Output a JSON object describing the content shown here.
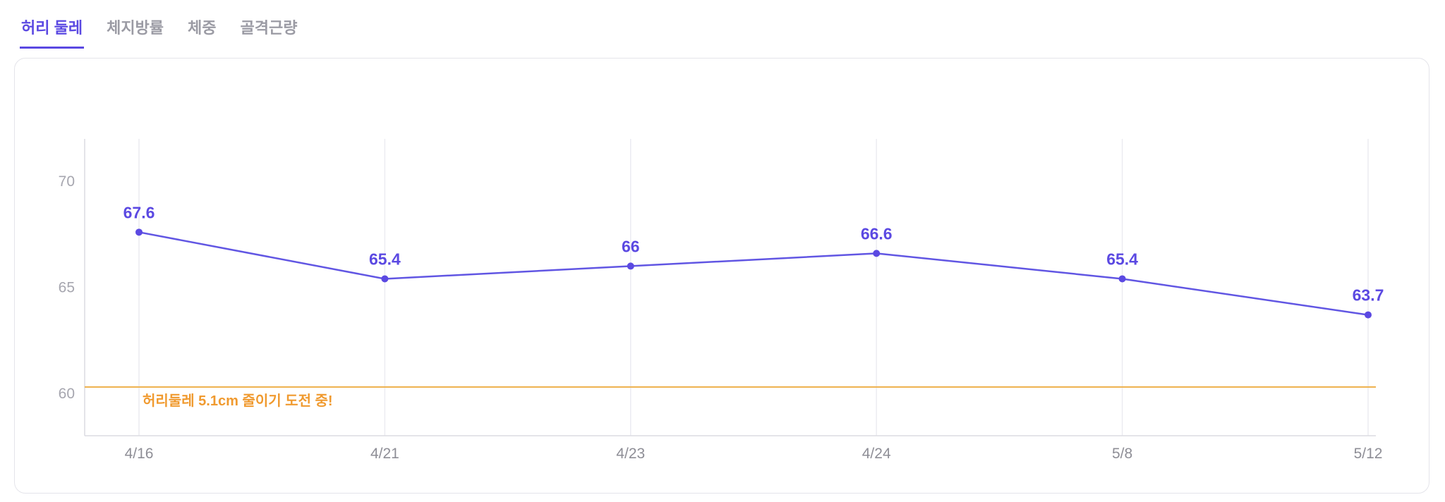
{
  "tabs": [
    {
      "label": "허리 둘레",
      "active": true
    },
    {
      "label": "체지방률",
      "active": false
    },
    {
      "label": "체중",
      "active": false
    },
    {
      "label": "골격근량",
      "active": false
    }
  ],
  "colors": {
    "accent": "#5b49e2",
    "line": "#6156e3",
    "point": "#5b49e2",
    "value_label": "#5b49e2",
    "goal_line": "#eeb04a",
    "goal_text": "#f09a2f",
    "grid": "#ececf1",
    "axis": "#dcdce2",
    "x_tick_text": "#8e8e96",
    "y_tick_text": "#a6a6af",
    "card_border": "#e4e4ea"
  },
  "chart_data": {
    "type": "line",
    "series_name": "허리 둘레",
    "categories": [
      "4/16",
      "4/21",
      "4/23",
      "4/24",
      "5/8",
      "5/12"
    ],
    "values": [
      67.6,
      65.4,
      66,
      66.6,
      65.4,
      63.7
    ],
    "value_labels": [
      "67.6",
      "65.4",
      "66",
      "66.6",
      "65.4",
      "63.7"
    ],
    "yticks": [
      70,
      65,
      60
    ],
    "ylim": [
      58,
      72
    ],
    "grid": "vertical-only",
    "legend": "none",
    "goal_line": {
      "value": 60.3,
      "label": "허리둘레 5.1cm 줄이기 도전 중!"
    }
  }
}
